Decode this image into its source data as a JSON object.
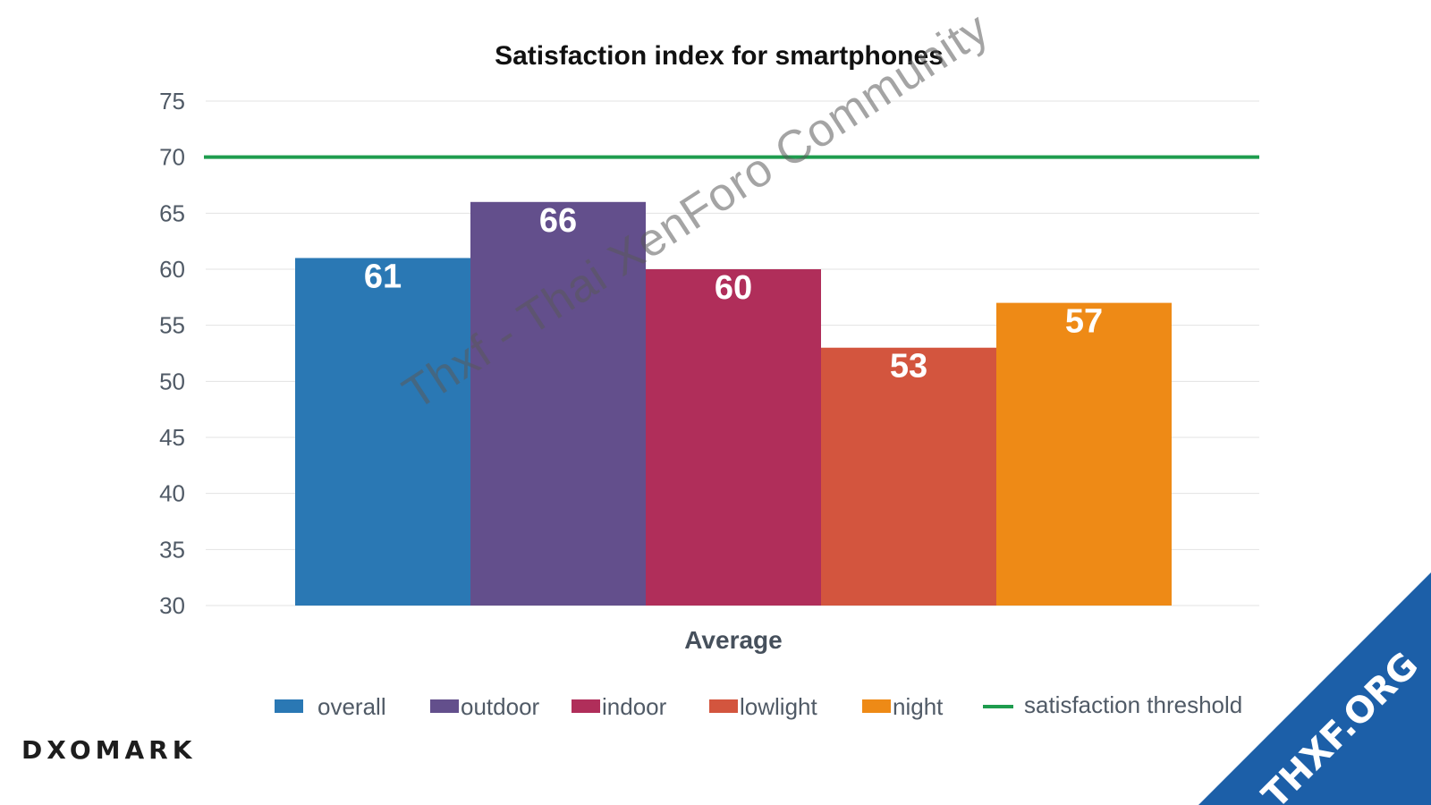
{
  "chart_data": {
    "type": "bar",
    "title": "Satisfaction index for smartphones",
    "xlabel": "Average",
    "ylabel": "",
    "categories": [
      "Average"
    ],
    "series": [
      {
        "name": "overall",
        "values": [
          61
        ],
        "color": "#2a78b4"
      },
      {
        "name": "outdoor",
        "values": [
          66
        ],
        "color": "#634f8c"
      },
      {
        "name": "indoor",
        "values": [
          60
        ],
        "color": "#b02e5a"
      },
      {
        "name": "lowlight",
        "values": [
          53
        ],
        "color": "#d3553e"
      },
      {
        "name": "night",
        "values": [
          57
        ],
        "color": "#ee8a16"
      }
    ],
    "data_labels": [
      "61",
      "66",
      "60",
      "53",
      "57"
    ],
    "threshold": {
      "name": "satisfaction threshold",
      "value": 70,
      "color": "#1e9c4e"
    },
    "ylim": [
      30,
      75
    ],
    "yticks": [
      30,
      35,
      40,
      45,
      50,
      55,
      60,
      65,
      70,
      75
    ],
    "grid": true,
    "legend_position": "bottom"
  },
  "watermark": {
    "text": "Thxf - Thai XenForo Community"
  },
  "logo": {
    "text": "DXOMARK"
  },
  "corner_badge": {
    "text": "THXF.ORG",
    "color": "#1c5fa8"
  }
}
